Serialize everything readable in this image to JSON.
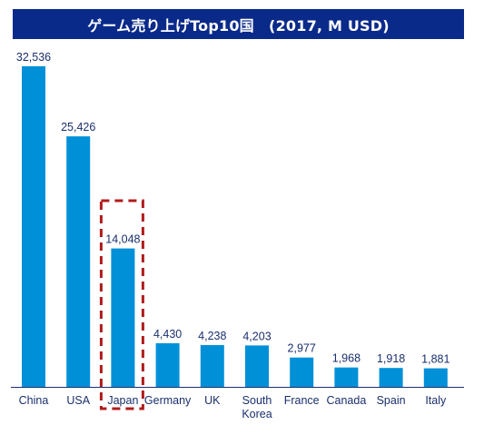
{
  "chart_data": {
    "type": "bar",
    "title": "ゲーム売り上げTop10国　(2017, M USD)",
    "categories": [
      "China",
      "USA",
      "Japan",
      "Germany",
      "UK",
      "South Korea",
      "France",
      "Canada",
      "Spain",
      "Italy"
    ],
    "category_lines": [
      [
        "China"
      ],
      [
        "USA"
      ],
      [
        "Japan"
      ],
      [
        "Germany"
      ],
      [
        "UK"
      ],
      [
        "South",
        "Korea"
      ],
      [
        "France"
      ],
      [
        "Canada"
      ],
      [
        "Spain"
      ],
      [
        "Italy"
      ]
    ],
    "values": [
      32536,
      25426,
      14048,
      4430,
      4238,
      4203,
      2977,
      1968,
      1918,
      1881
    ],
    "value_labels": [
      "32,536",
      "25,426",
      "14,048",
      "4,430",
      "4,238",
      "4,203",
      "2,977",
      "1,968",
      "1,918",
      "1,881"
    ],
    "xlabel": "",
    "ylabel": "",
    "ylim": [
      0,
      33000
    ],
    "grid": false,
    "legend": "none",
    "highlight_category": "Japan",
    "colors": {
      "bar": "#0090d8",
      "title_bg": "#0a2a8a",
      "title_text": "#ffffff",
      "label_text": "#1a2f6e",
      "highlight_box": "#b01c1c",
      "axis": "#1a2f6e"
    }
  }
}
